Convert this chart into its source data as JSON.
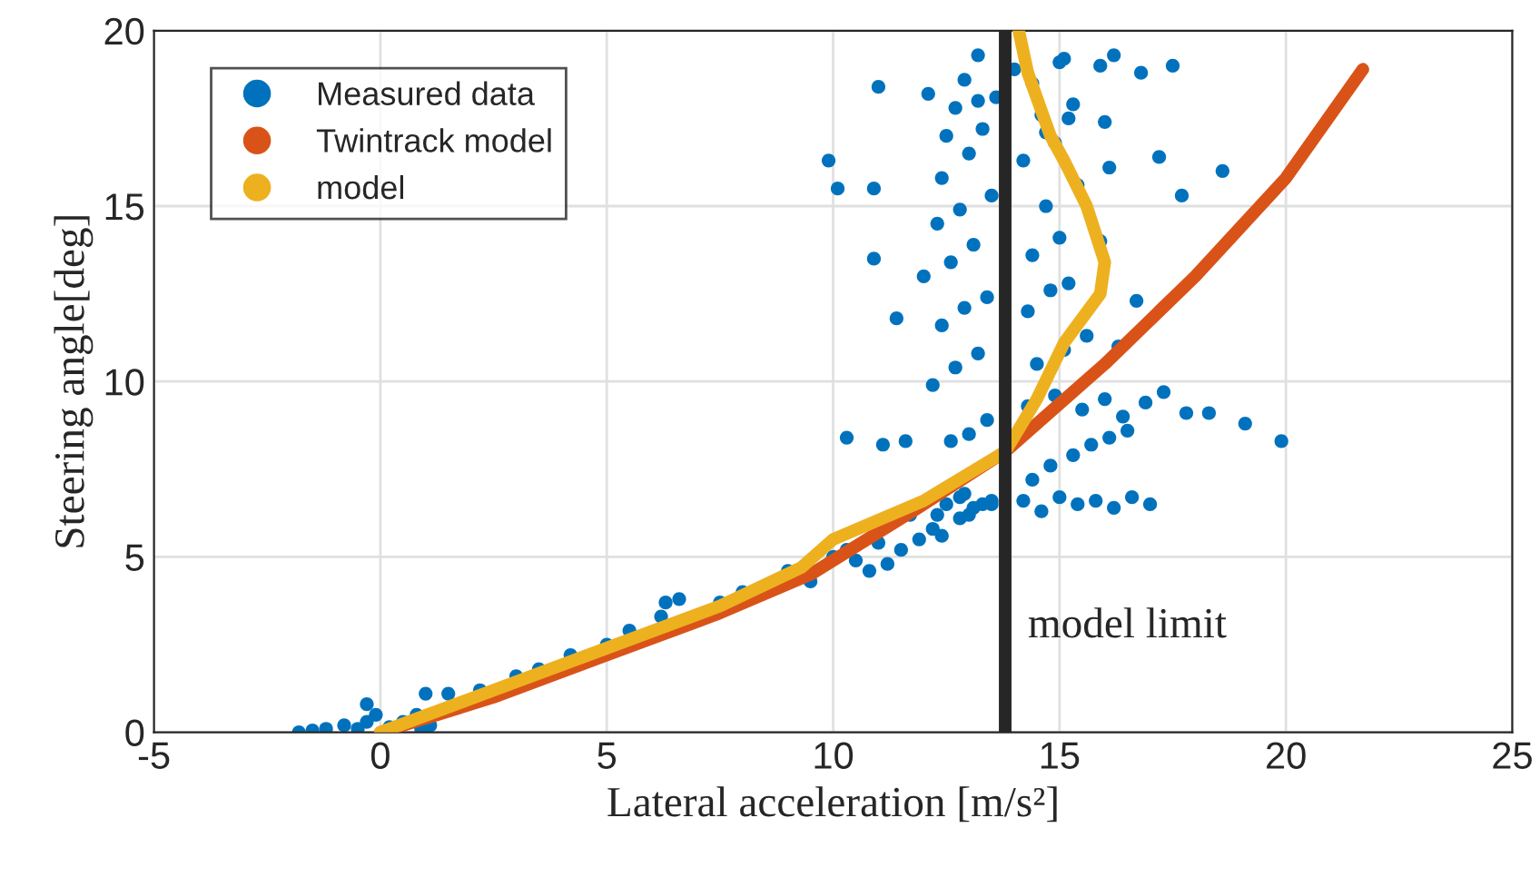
{
  "chart_data": {
    "type": "scatter",
    "xlabel": "Lateral acceleration [m/s²]",
    "ylabel": "Steering angle[deg]",
    "xlim": [
      -5,
      25
    ],
    "xticks": [
      -5,
      0,
      5,
      10,
      15,
      20,
      25
    ],
    "ylim": [
      0,
      20
    ],
    "yticks": [
      0,
      5,
      10,
      15,
      20
    ],
    "grid": true,
    "legend": "top left",
    "ref_lines": [
      {
        "axis": "x",
        "value": 13.8,
        "label": "model limit",
        "color": "#262626"
      }
    ],
    "series": [
      {
        "name": "Measured data",
        "marker": "circle",
        "color": "#0072bd",
        "x": [
          -1.8,
          -1.5,
          -1.2,
          -0.8,
          -0.5,
          -0.3,
          0.2,
          0.5,
          0.9,
          -0.3,
          -0.1,
          0.8,
          1.1,
          1.5,
          1.0,
          2.2,
          3.0,
          3.5,
          4.2,
          5.0,
          5.5,
          6.2,
          6.6,
          6.3,
          7.5,
          8.0,
          9.0,
          9.5,
          10.0,
          10.5,
          11.0,
          11.5,
          11.9,
          12.4,
          12.8,
          11.7,
          12.2,
          13.0,
          13.5,
          10.8,
          11.2,
          10.3,
          11.0,
          9.9,
          10.1,
          10.9,
          10.9,
          11.4,
          10.3,
          11.1,
          11.6,
          18.6,
          17.7,
          19.9,
          19.1,
          18.3,
          17.2,
          13.2,
          15.1,
          15.9,
          12.5,
          12.8,
          13.1,
          13.5,
          12.3,
          12.9,
          13.3,
          14.2,
          14.6,
          15.0,
          15.4,
          15.8,
          16.2,
          16.6,
          17.0,
          14.4,
          14.8,
          15.3,
          15.7,
          16.1,
          16.5,
          12.6,
          13.0,
          13.4,
          14.3,
          14.9,
          15.5,
          16.0,
          16.4,
          16.9,
          17.3,
          17.8,
          12.2,
          12.7,
          13.2,
          14.5,
          15.1,
          15.6,
          16.3,
          12.4,
          12.9,
          13.4,
          14.3,
          14.8,
          15.2,
          16.7,
          12.0,
          12.6,
          13.1,
          14.4,
          15.0,
          15.9,
          12.3,
          12.8,
          13.5,
          14.7,
          15.4,
          16.1,
          13.0,
          14.2,
          14.9,
          12.5,
          13.3,
          14.6,
          15.3,
          12.1,
          12.7,
          13.6,
          14.4,
          15.2,
          16.0,
          16.8,
          17.5,
          12.9,
          14.0,
          15.0,
          16.2,
          12.4,
          13.2,
          14.7
        ],
        "values": [
          0.0,
          0.05,
          0.1,
          0.2,
          0.1,
          0.3,
          0.15,
          0.3,
          0.1,
          0.8,
          0.5,
          0.5,
          0.2,
          1.1,
          1.1,
          1.2,
          1.6,
          1.8,
          2.2,
          2.5,
          2.9,
          3.3,
          3.8,
          3.7,
          3.7,
          4.0,
          4.6,
          4.3,
          5.0,
          4.9,
          5.4,
          5.2,
          5.5,
          5.6,
          6.1,
          6.2,
          5.8,
          6.2,
          6.5,
          4.6,
          4.8,
          5.2,
          18.4,
          16.3,
          15.5,
          15.5,
          13.5,
          11.8,
          8.4,
          8.2,
          8.3,
          16.0,
          15.3,
          8.3,
          8.8,
          9.1,
          16.4,
          19.3,
          19.2,
          19.0,
          6.5,
          6.7,
          6.4,
          6.6,
          6.2,
          6.8,
          6.5,
          6.6,
          6.3,
          6.7,
          6.5,
          6.6,
          6.4,
          6.7,
          6.5,
          7.2,
          7.6,
          7.9,
          8.2,
          8.4,
          8.6,
          8.3,
          8.5,
          8.9,
          9.3,
          9.6,
          9.2,
          9.5,
          9.0,
          9.4,
          9.7,
          9.1,
          9.9,
          10.4,
          10.8,
          10.5,
          10.9,
          11.3,
          11.0,
          11.6,
          12.1,
          12.4,
          12.0,
          12.6,
          12.8,
          12.3,
          13.0,
          13.4,
          13.9,
          13.6,
          14.1,
          14.0,
          14.5,
          14.9,
          15.3,
          15.0,
          15.6,
          16.1,
          16.5,
          16.3,
          16.8,
          17.0,
          17.2,
          17.6,
          17.9,
          18.2,
          17.8,
          18.1,
          18.5,
          17.5,
          17.4,
          18.8,
          19.0,
          18.6,
          18.9,
          19.1,
          19.3,
          15.8,
          18.0,
          17.1
        ]
      },
      {
        "name": "Twintrack model",
        "type": "line",
        "color": "#d95319",
        "x": [
          0,
          2.5,
          5,
          7.5,
          9.5,
          12,
          13.8,
          16,
          18,
          20,
          21.7
        ],
        "values": [
          0,
          1.0,
          2.2,
          3.4,
          4.5,
          6.5,
          8.0,
          10.5,
          13.0,
          15.8,
          18.9
        ]
      },
      {
        "name": "model",
        "type": "line",
        "color": "#edb120",
        "x": [
          0,
          2.5,
          5,
          7.5,
          9.3,
          10,
          12,
          13.8,
          14.5,
          15.1,
          15.9,
          16.0,
          15.6,
          15.1,
          14.8,
          14.3,
          14.1
        ],
        "values": [
          0,
          1.2,
          2.4,
          3.6,
          4.7,
          5.5,
          6.6,
          8.0,
          9.5,
          11.1,
          12.5,
          13.4,
          15.0,
          16.3,
          17.0,
          18.8,
          20.0
        ]
      }
    ]
  }
}
